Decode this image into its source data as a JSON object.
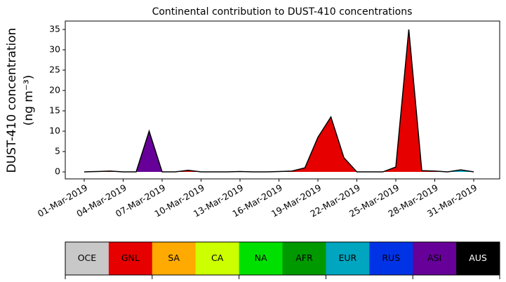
{
  "chart_data": {
    "type": "stacked_area",
    "title": "Continental contribution to DUST-410 concentrations",
    "ylabel": [
      "DUST-410 concentration",
      "(ng m⁻³)"
    ],
    "x": [
      "01-Mar-2019",
      "02-Mar-2019",
      "03-Mar-2019",
      "04-Mar-2019",
      "05-Mar-2019",
      "06-Mar-2019",
      "07-Mar-2019",
      "08-Mar-2019",
      "09-Mar-2019",
      "10-Mar-2019",
      "11-Mar-2019",
      "12-Mar-2019",
      "13-Mar-2019",
      "14-Mar-2019",
      "15-Mar-2019",
      "16-Mar-2019",
      "17-Mar-2019",
      "18-Mar-2019",
      "19-Mar-2019",
      "20-Mar-2019",
      "21-Mar-2019",
      "22-Mar-2019",
      "23-Mar-2019",
      "24-Mar-2019",
      "25-Mar-2019",
      "26-Mar-2019",
      "27-Mar-2019",
      "28-Mar-2019",
      "29-Mar-2019",
      "30-Mar-2019",
      "31-Mar-2019"
    ],
    "ylim": [
      -1.72,
      37.07
    ],
    "yticks": [
      0,
      5,
      10,
      15,
      20,
      25,
      30,
      35
    ],
    "series": [
      {
        "name": "OCE",
        "color": "#c8c8c8",
        "values": [
          0,
          0,
          0,
          0,
          0,
          0,
          0,
          0,
          0,
          0,
          0,
          0,
          0,
          0,
          0,
          0,
          0,
          0,
          0,
          0,
          0,
          0,
          0,
          0,
          0,
          0,
          0,
          0,
          0,
          0,
          0
        ]
      },
      {
        "name": "GNL",
        "color": "#e60000",
        "values": [
          0,
          0.1,
          0.2,
          0,
          0,
          0,
          0,
          0,
          0.4,
          0,
          0,
          0,
          0.1,
          0,
          0,
          0.1,
          0.2,
          1.0,
          8.5,
          13.5,
          3.5,
          0,
          0,
          0,
          1.2,
          35,
          0.3,
          0.2,
          0,
          0,
          0
        ]
      },
      {
        "name": "SA",
        "color": "#ffaa00",
        "values": [
          0,
          0,
          0,
          0,
          0,
          0,
          0,
          0,
          0,
          0,
          0,
          0,
          0,
          0,
          0,
          0,
          0,
          0,
          0,
          0,
          0,
          0,
          0,
          0,
          0,
          0,
          0,
          0,
          0,
          0,
          0
        ]
      },
      {
        "name": "CA",
        "color": "#ccff00",
        "values": [
          0,
          0,
          0,
          0,
          0,
          0,
          0,
          0,
          0,
          0,
          0,
          0,
          0,
          0,
          0,
          0,
          0,
          0,
          0,
          0,
          0,
          0,
          0,
          0,
          0,
          0,
          0,
          0,
          0,
          0,
          0
        ]
      },
      {
        "name": "NA",
        "color": "#00e000",
        "values": [
          0,
          0,
          0,
          0,
          0,
          0,
          0,
          0,
          0,
          0,
          0,
          0,
          0,
          0,
          0,
          0,
          0,
          0,
          0,
          0,
          0,
          0,
          0,
          0,
          0,
          0,
          0,
          0,
          0,
          0,
          0
        ]
      },
      {
        "name": "AFR",
        "color": "#009900",
        "values": [
          0,
          0,
          0,
          0,
          0,
          0,
          0,
          0,
          0,
          0,
          0,
          0,
          0,
          0,
          0,
          0,
          0,
          0,
          0,
          0,
          0,
          0,
          0,
          0,
          0,
          0,
          0,
          0,
          0,
          0,
          0
        ]
      },
      {
        "name": "EUR",
        "color": "#00a5bf",
        "values": [
          0,
          0,
          0,
          0,
          0,
          0,
          0,
          0,
          0,
          0,
          0,
          0,
          0,
          0,
          0,
          0,
          0,
          0,
          0,
          0,
          0,
          0,
          0,
          0,
          0,
          0,
          0,
          0,
          0,
          0.5,
          0
        ]
      },
      {
        "name": "RUS",
        "color": "#0033e6",
        "values": [
          0,
          0,
          0,
          0,
          0,
          0,
          0,
          0,
          0,
          0,
          0,
          0,
          0,
          0,
          0,
          0,
          0,
          0,
          0,
          0,
          0,
          0,
          0,
          0,
          0,
          0,
          0,
          0,
          0,
          0,
          0
        ]
      },
      {
        "name": "ASI",
        "color": "#660099",
        "values": [
          0,
          0,
          0,
          0,
          0,
          10,
          0,
          0,
          0,
          0,
          0,
          0,
          0,
          0,
          0,
          0,
          0,
          0,
          0,
          0,
          0,
          0,
          0,
          0,
          0,
          0,
          0,
          0,
          0,
          0,
          0
        ]
      },
      {
        "name": "AUS",
        "color": "#000000",
        "values": [
          0,
          0,
          0,
          0,
          0,
          0,
          0,
          0,
          0,
          0,
          0,
          0,
          0,
          0,
          0,
          0,
          0,
          0,
          0,
          0,
          0,
          0,
          0,
          0,
          0,
          0,
          0,
          0,
          0,
          0,
          0
        ]
      }
    ]
  }
}
